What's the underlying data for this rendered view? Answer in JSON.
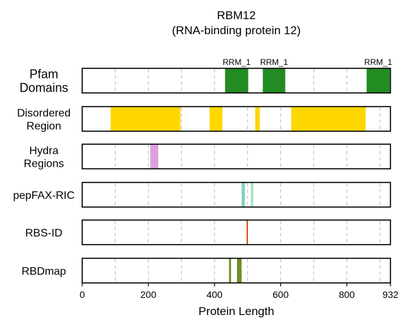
{
  "chart_data": {
    "type": "track",
    "title": "RBM12",
    "subtitle": "(RNA-binding protein 12)",
    "xlabel": "Protein Length",
    "xlim": [
      0,
      932
    ],
    "xticks": [
      0,
      200,
      400,
      600,
      800,
      932
    ],
    "grid_x": [
      100,
      200,
      300,
      400,
      500,
      600,
      700,
      800,
      900
    ],
    "grid": true,
    "tracks": [
      {
        "label_lines": [
          "Pfam",
          "Domains"
        ],
        "segments": [
          {
            "start": 432,
            "end": 502,
            "color": "#228B22",
            "label": "RRM_1"
          },
          {
            "start": 546,
            "end": 614,
            "color": "#228B22",
            "label": "RRM_1"
          },
          {
            "start": 860,
            "end": 930,
            "color": "#228B22",
            "label": "RRM_1"
          }
        ]
      },
      {
        "label_lines": [
          "Disordered",
          "Region"
        ],
        "segments": [
          {
            "start": 86,
            "end": 297,
            "color": "#FFD700"
          },
          {
            "start": 385,
            "end": 424,
            "color": "#FFD700"
          },
          {
            "start": 523,
            "end": 537,
            "color": "#FFD700"
          },
          {
            "start": 632,
            "end": 857,
            "color": "#FFD700"
          }
        ]
      },
      {
        "label_lines": [
          "Hydra",
          "Regions"
        ],
        "segments": [
          {
            "start": 206,
            "end": 230,
            "color": "#DDA0DD"
          }
        ]
      },
      {
        "label_lines": [
          "pepFAX-RIC"
        ],
        "segments": [
          {
            "start": 482,
            "end": 492,
            "color": "#88CCC0"
          },
          {
            "start": 510,
            "end": 517,
            "color": "#A5DCC5"
          }
        ]
      },
      {
        "label_lines": [
          "RBS-ID"
        ],
        "segments": [
          {
            "start": 497,
            "end": 501,
            "color": "#E04A10"
          }
        ]
      },
      {
        "label_lines": [
          "RBDmap"
        ],
        "segments": [
          {
            "start": 444,
            "end": 450,
            "color": "#6B8E23"
          },
          {
            "start": 468,
            "end": 482,
            "color": "#6B8E23"
          }
        ]
      }
    ]
  }
}
